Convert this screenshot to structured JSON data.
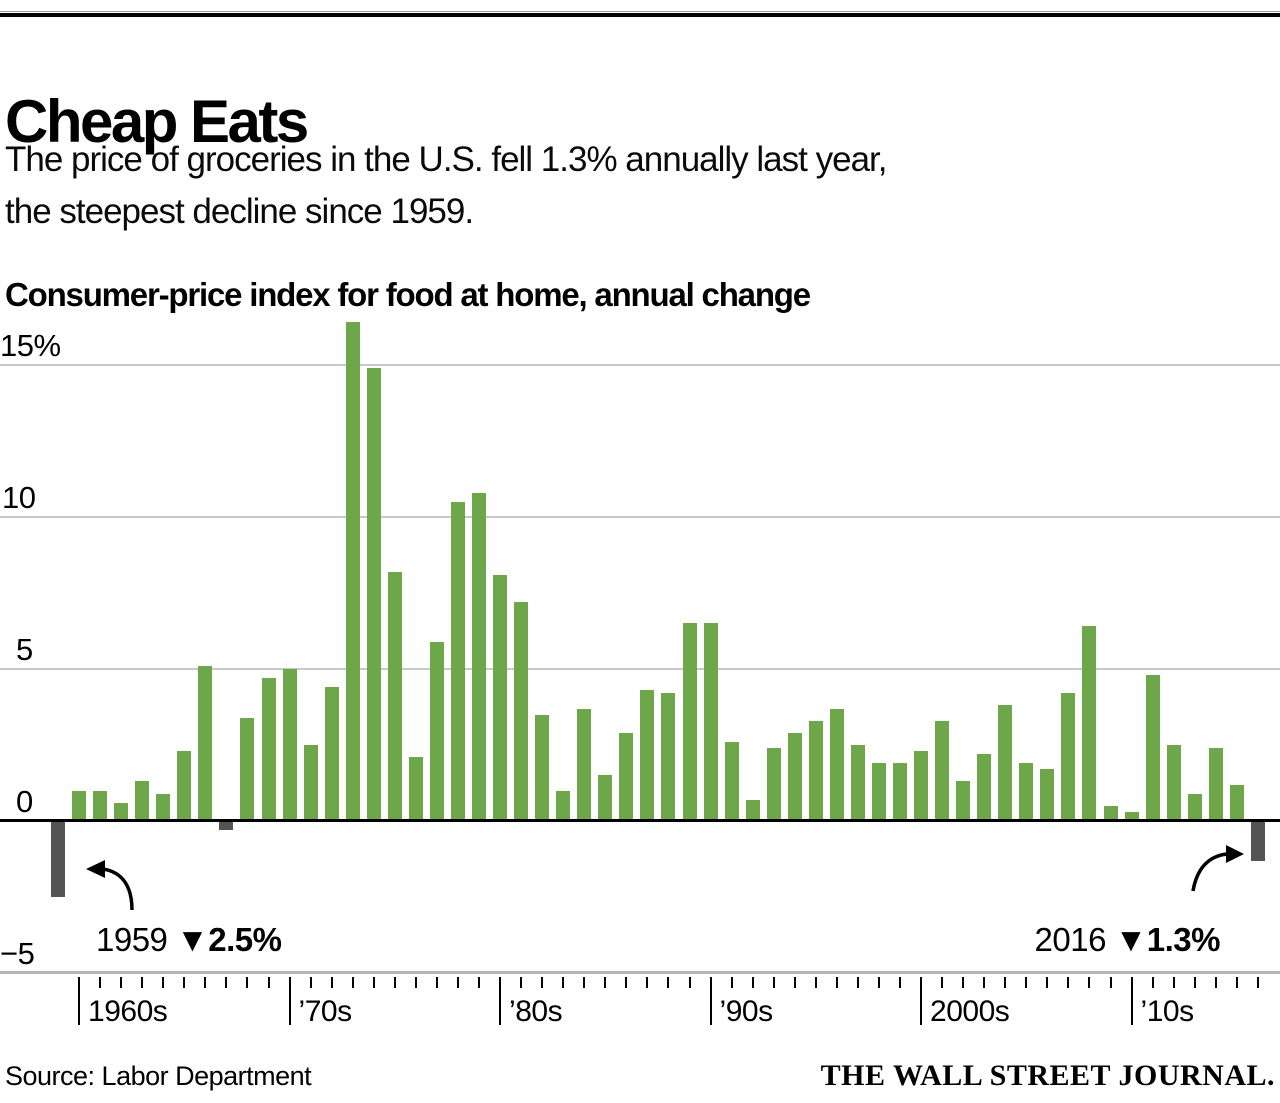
{
  "header": {
    "title": "Cheap Eats",
    "subtitle_line1": "The price of groceries in the U.S. fell 1.3% annually last year,",
    "subtitle_line2": "the steepest decline since 1959.",
    "series_label": "Consumer-price index for food at home, annual change"
  },
  "chart_data": {
    "type": "bar",
    "title": "Cheap Eats",
    "subtitle": "The price of groceries in the U.S. fell 1.3% annually last year, the steepest decline since 1959.",
    "ylabel": "Consumer-price index for food at home, annual change (%)",
    "ylim": [
      -5,
      16.5
    ],
    "grid": "horizontal",
    "bar_color": "#6ea64a",
    "negative_color": "#545454",
    "years": [
      1959,
      1960,
      1961,
      1962,
      1963,
      1964,
      1965,
      1966,
      1967,
      1968,
      1969,
      1970,
      1971,
      1972,
      1973,
      1974,
      1975,
      1976,
      1977,
      1978,
      1979,
      1980,
      1981,
      1982,
      1983,
      1984,
      1985,
      1986,
      1987,
      1988,
      1989,
      1990,
      1991,
      1992,
      1993,
      1994,
      1995,
      1996,
      1997,
      1998,
      1999,
      2000,
      2001,
      2002,
      2003,
      2004,
      2005,
      2006,
      2007,
      2008,
      2009,
      2010,
      2011,
      2012,
      2013,
      2014,
      2015,
      2016
    ],
    "values": [
      -2.5,
      1.0,
      1.0,
      0.6,
      1.3,
      0.9,
      2.3,
      5.1,
      -0.3,
      3.4,
      4.7,
      5.0,
      2.5,
      4.4,
      16.4,
      14.9,
      8.2,
      2.1,
      5.9,
      10.5,
      10.8,
      8.1,
      7.2,
      3.5,
      1.0,
      3.7,
      1.5,
      2.9,
      4.3,
      4.2,
      6.5,
      6.5,
      2.6,
      0.7,
      2.4,
      2.9,
      3.3,
      3.7,
      2.5,
      1.9,
      1.9,
      2.3,
      3.3,
      1.3,
      2.2,
      3.8,
      1.9,
      1.7,
      4.2,
      6.4,
      0.5,
      0.3,
      4.8,
      2.5,
      0.9,
      2.4,
      1.2,
      -1.3
    ],
    "yticks": [
      {
        "label": "15%",
        "value": 15
      },
      {
        "label": "10",
        "value": 10
      },
      {
        "label": "5",
        "value": 5
      },
      {
        "label": "0",
        "value": 0
      },
      {
        "label": "−5",
        "value": -5
      }
    ],
    "x_axis_labels": [
      {
        "label": "1960s",
        "year": 1960
      },
      {
        "label": "’70s",
        "year": 1970
      },
      {
        "label": "’80s",
        "year": 1980
      },
      {
        "label": "’90s",
        "year": 1990
      },
      {
        "label": "2000s",
        "year": 2000
      },
      {
        "label": "’10s",
        "year": 2010
      }
    ],
    "annotations": [
      {
        "year_label": "1959",
        "value_label": "▼2.5%"
      },
      {
        "year_label": "2016",
        "value_label": "▼1.3%"
      }
    ]
  },
  "footer": {
    "source": "Source: Labor Department",
    "brand": "THE WALL STREET JOURNAL."
  }
}
